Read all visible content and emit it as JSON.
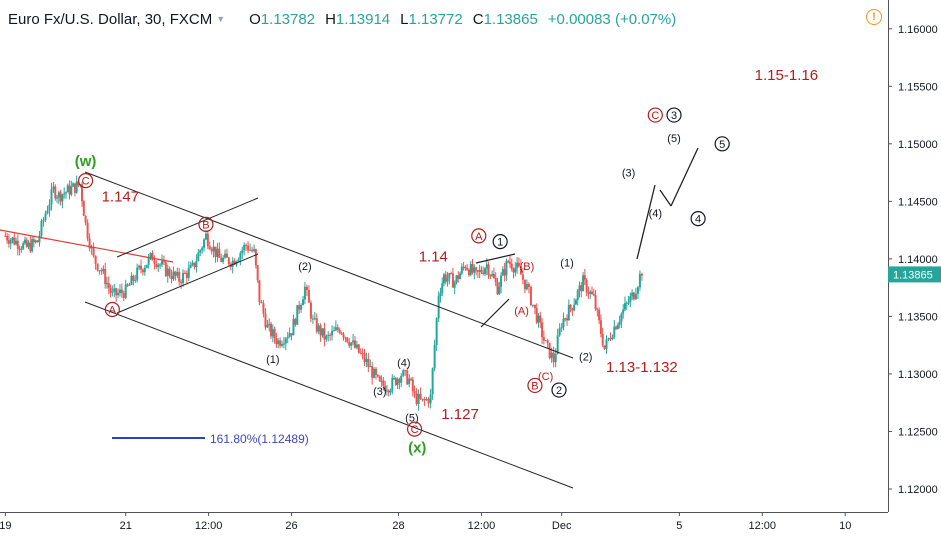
{
  "header": {
    "symbol": "Euro Fx/U.S. Dollar, 30, FXCM",
    "open_label": "O",
    "open": "1.13782",
    "high_label": "H",
    "high": "1.13914",
    "low_label": "L",
    "low": "1.13772",
    "close_label": "C",
    "close": "1.13865",
    "change": "+0.00083 (+0.07%)",
    "alert_icon": "warning-icon"
  },
  "colors": {
    "up": "#26a69a",
    "down": "#ef5350",
    "annotation_red": "#b71c1c",
    "wave_green": "#2e9e1f",
    "fib_blue": "#2b3fc9",
    "channel": "#222222",
    "trend_red": "#e53935"
  },
  "chart_data": {
    "type": "candlestick",
    "title": "Euro Fx/U.S. Dollar, 30, FXCM",
    "xlabel": "",
    "ylabel": "",
    "ylim": [
      1.118,
      1.1625
    ],
    "y_ticks": [
      "1.16000",
      "1.15500",
      "1.15000",
      "1.14500",
      "1.14000",
      "1.13500",
      "1.13000",
      "1.12500",
      "1.12000"
    ],
    "y_tick_values": [
      1.16,
      1.155,
      1.15,
      1.145,
      1.14,
      1.135,
      1.13,
      1.125,
      1.12
    ],
    "x_ticks": [
      {
        "label": "19",
        "x": 0
      },
      {
        "label": "21",
        "x": 45
      },
      {
        "label": "12:00",
        "x": 76
      },
      {
        "label": "26",
        "x": 107
      },
      {
        "label": "28",
        "x": 147
      },
      {
        "label": "12:00",
        "x": 178
      },
      {
        "label": "Dec",
        "x": 208
      },
      {
        "label": "5",
        "x": 252
      },
      {
        "label": "12:00",
        "x": 283
      },
      {
        "label": "10",
        "x": 314
      }
    ],
    "x_range": [
      -2,
      330
    ],
    "price_path": [
      [
        0,
        1.142
      ],
      [
        4,
        1.1415
      ],
      [
        8,
        1.141
      ],
      [
        12,
        1.1415
      ],
      [
        15,
        1.144
      ],
      [
        18,
        1.146
      ],
      [
        20,
        1.1455
      ],
      [
        24,
        1.146
      ],
      [
        28,
        1.1465
      ],
      [
        30,
        1.143
      ],
      [
        33,
        1.14
      ],
      [
        36,
        1.139
      ],
      [
        40,
        1.1368
      ],
      [
        45,
        1.1372
      ],
      [
        50,
        1.139
      ],
      [
        55,
        1.1402
      ],
      [
        60,
        1.139
      ],
      [
        65,
        1.1382
      ],
      [
        70,
        1.1392
      ],
      [
        75,
        1.142
      ],
      [
        80,
        1.14
      ],
      [
        85,
        1.1398
      ],
      [
        90,
        1.1412
      ],
      [
        93,
        1.1405
      ],
      [
        95,
        1.1365
      ],
      [
        98,
        1.134
      ],
      [
        102,
        1.1328
      ],
      [
        107,
        1.1338
      ],
      [
        112,
        1.1375
      ],
      [
        115,
        1.1345
      ],
      [
        120,
        1.133
      ],
      [
        125,
        1.134
      ],
      [
        130,
        1.1325
      ],
      [
        135,
        1.131
      ],
      [
        140,
        1.129
      ],
      [
        144,
        1.129
      ],
      [
        148,
        1.13
      ],
      [
        151,
        1.1295
      ],
      [
        153,
        1.128
      ],
      [
        156,
        1.1275
      ],
      [
        159,
        1.128
      ],
      [
        162,
        1.137
      ],
      [
        164,
        1.1385
      ],
      [
        168,
        1.138
      ],
      [
        172,
        1.1395
      ],
      [
        176,
        1.1385
      ],
      [
        180,
        1.1395
      ],
      [
        184,
        1.1375
      ],
      [
        188,
        1.1398
      ],
      [
        192,
        1.139
      ],
      [
        195,
        1.1375
      ],
      [
        198,
        1.1355
      ],
      [
        202,
        1.1325
      ],
      [
        205,
        1.1312
      ],
      [
        208,
        1.1345
      ],
      [
        212,
        1.136
      ],
      [
        216,
        1.138
      ],
      [
        220,
        1.1365
      ],
      [
        224,
        1.1322
      ],
      [
        227,
        1.1338
      ],
      [
        231,
        1.1355
      ],
      [
        235,
        1.137
      ],
      [
        238,
        1.139
      ]
    ],
    "current_price": 1.13865,
    "annotations": [
      {
        "text": "(w)",
        "x": 30,
        "y": 1.1485,
        "role": "wave-w-label",
        "color": "green"
      },
      {
        "text": "C",
        "x": 30,
        "y": 1.1468,
        "role": "circled",
        "color": "red"
      },
      {
        "text": "1.147",
        "x": 43,
        "y": 1.1454,
        "role": "level",
        "color": "red"
      },
      {
        "text": "B",
        "x": 75,
        "y": 1.143,
        "role": "circled",
        "color": "red"
      },
      {
        "text": "A",
        "x": 40,
        "y": 1.1356,
        "role": "circled",
        "color": "red"
      },
      {
        "text": "(2)",
        "x": 112,
        "y": 1.1394,
        "role": "minor",
        "color": "dark"
      },
      {
        "text": "(1)",
        "x": 100,
        "y": 1.1313,
        "role": "minor",
        "color": "dark"
      },
      {
        "text": "(3)",
        "x": 140,
        "y": 1.1285,
        "role": "minor",
        "color": "dark"
      },
      {
        "text": "(4)",
        "x": 149,
        "y": 1.131,
        "role": "minor",
        "color": "dark"
      },
      {
        "text": "(5)",
        "x": 152,
        "y": 1.1262,
        "role": "minor",
        "color": "dark"
      },
      {
        "text": "C",
        "x": 153,
        "y": 1.1252,
        "role": "circled",
        "color": "red"
      },
      {
        "text": "(x)",
        "x": 154,
        "y": 1.1236,
        "role": "wave-x-label",
        "color": "green"
      },
      {
        "text": "1.127",
        "x": 170,
        "y": 1.1265,
        "role": "level",
        "color": "red"
      },
      {
        "text": "1.14",
        "x": 160,
        "y": 1.1402,
        "role": "level",
        "color": "red"
      },
      {
        "text": "A",
        "x": 177,
        "y": 1.142,
        "role": "circled",
        "color": "red"
      },
      {
        "text": "1",
        "x": 185,
        "y": 1.1415,
        "role": "circled",
        "color": "dark"
      },
      {
        "text": "(B)",
        "x": 195,
        "y": 1.1394,
        "role": "minor",
        "color": "red"
      },
      {
        "text": "(A)",
        "x": 193,
        "y": 1.1355,
        "role": "minor",
        "color": "red"
      },
      {
        "text": "(C)",
        "x": 202,
        "y": 1.1298,
        "role": "minor",
        "color": "red"
      },
      {
        "text": "B",
        "x": 198,
        "y": 1.129,
        "role": "circled",
        "color": "red"
      },
      {
        "text": "2",
        "x": 207,
        "y": 1.1286,
        "role": "circled",
        "color": "dark"
      },
      {
        "text": "(1)",
        "x": 210,
        "y": 1.1397,
        "role": "minor",
        "color": "dark"
      },
      {
        "text": "(2)",
        "x": 217,
        "y": 1.1315,
        "role": "minor",
        "color": "dark"
      },
      {
        "text": "1.13-1.132",
        "x": 238,
        "y": 1.1306,
        "role": "level",
        "color": "red"
      },
      {
        "text": "(3)",
        "x": 233,
        "y": 1.1475,
        "role": "minor",
        "color": "dark"
      },
      {
        "text": "(4)",
        "x": 243,
        "y": 1.144,
        "role": "minor",
        "color": "dark"
      },
      {
        "text": "(5)",
        "x": 250,
        "y": 1.1505,
        "role": "minor",
        "color": "dark"
      },
      {
        "text": "C",
        "x": 243,
        "y": 1.1525,
        "role": "circled",
        "color": "red"
      },
      {
        "text": "3",
        "x": 250,
        "y": 1.1525,
        "role": "circled",
        "color": "dark"
      },
      {
        "text": "5",
        "x": 268,
        "y": 1.15,
        "role": "circled",
        "color": "dark"
      },
      {
        "text": "4",
        "x": 259,
        "y": 1.1435,
        "role": "circled",
        "color": "dark"
      },
      {
        "text": "1.15-1.16",
        "x": 292,
        "y": 1.156,
        "role": "level",
        "color": "red"
      }
    ],
    "fib_label": "161.80%(1.12489)",
    "fib_level": 1.12489
  }
}
